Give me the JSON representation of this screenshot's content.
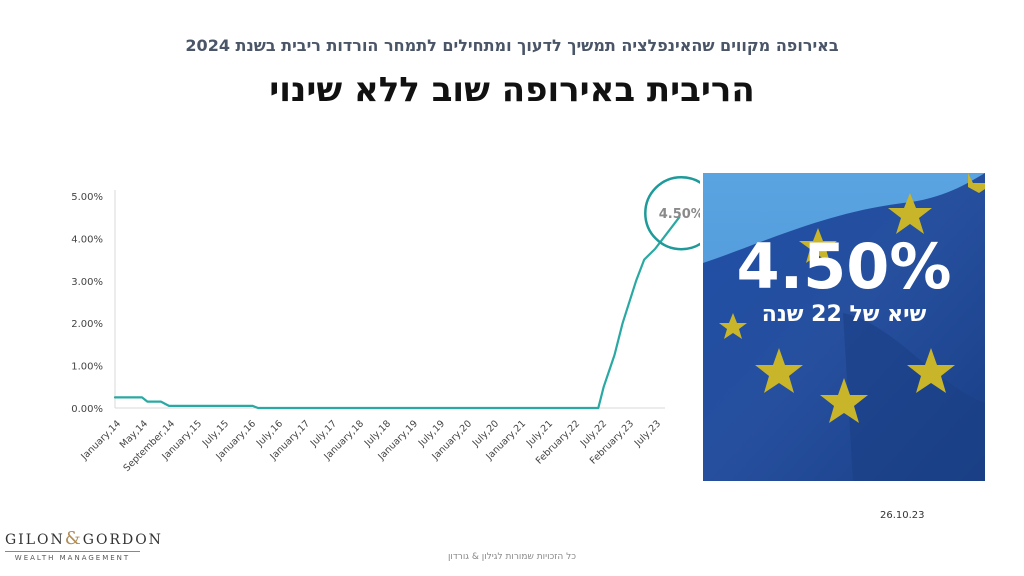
{
  "header": {
    "subtitle": "באירופה מקווים שהאינפלציה תמשיך לדעוך ומתחילים לתמחר הורדות ריבית בשנת 2024",
    "title": "הריבית באירופה שוב ללא שינוי"
  },
  "chart_data": {
    "type": "line",
    "x": [
      "January,14",
      "May,14",
      "September,14",
      "January,15",
      "July,15",
      "January,16",
      "July,16",
      "January,17",
      "July,17",
      "January,18",
      "July,18",
      "January,19",
      "July,19",
      "January,20",
      "July,20",
      "January,21",
      "July,21",
      "February,22",
      "July,22",
      "February,23",
      "July,23"
    ],
    "yticks": [
      "5.00%",
      "4.00%",
      "3.00%",
      "2.00%",
      "1.00%",
      "0.00%"
    ],
    "ylim": [
      0,
      5
    ],
    "series": [
      {
        "values": [
          [
            0,
            0.25
          ],
          [
            0.6,
            0.25
          ],
          [
            1.0,
            0.25
          ],
          [
            1.2,
            0.15
          ],
          [
            1.7,
            0.15
          ],
          [
            2.0,
            0.05
          ],
          [
            3.0,
            0.05
          ],
          [
            5.1,
            0.05
          ],
          [
            5.3,
            0.0
          ],
          [
            17.9,
            0.0
          ],
          [
            18.1,
            0.5
          ],
          [
            18.5,
            1.25
          ],
          [
            18.8,
            2.0
          ],
          [
            19.3,
            3.0
          ],
          [
            19.6,
            3.5
          ],
          [
            20.0,
            3.75
          ],
          [
            20.3,
            4.0
          ],
          [
            20.6,
            4.25
          ],
          [
            20.9,
            4.5
          ]
        ]
      }
    ],
    "annotation": "4.50%",
    "line_color": "#2aa9a3",
    "highlight_color": "#1e9a9a"
  },
  "flag_panel": {
    "big": "4.50%",
    "small": "שיא של 22 שנה"
  },
  "date": "26.10.23",
  "logo": {
    "left": "GILON",
    "amp": "&",
    "right": "GORDON",
    "sub": "WEALTH MANAGEMENT"
  },
  "footer": "כל הזכויות שמורות לגילון & גורדון"
}
